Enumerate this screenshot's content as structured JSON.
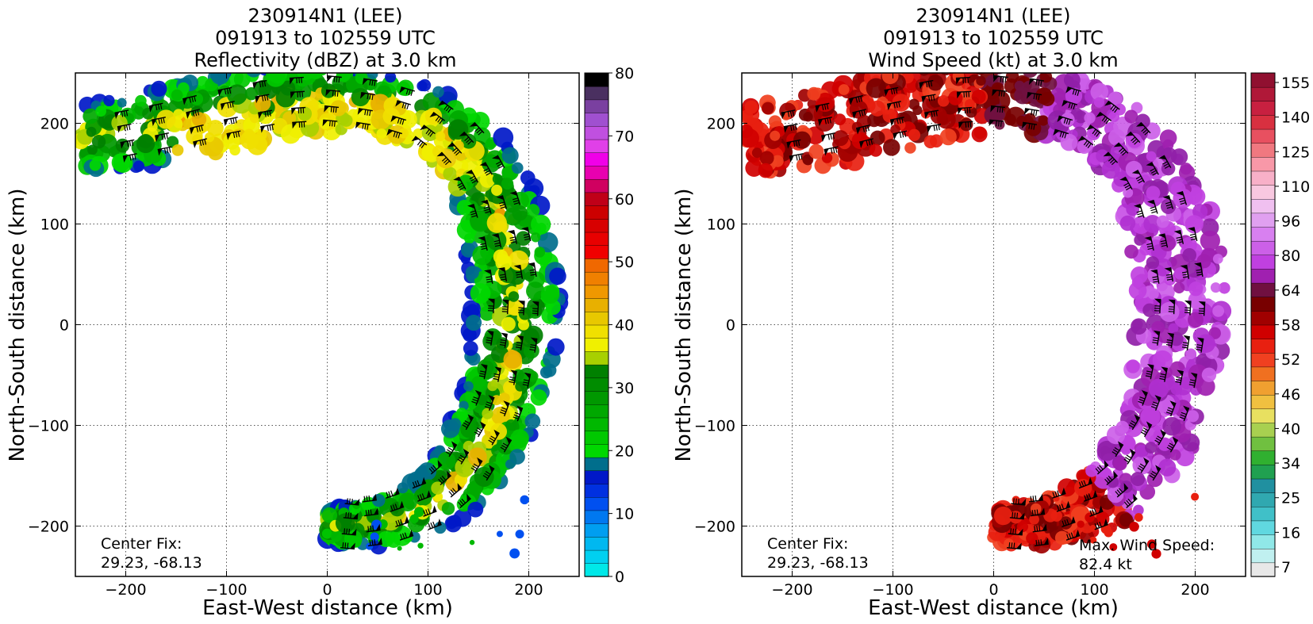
{
  "chart_data": [
    {
      "type": "heatmap",
      "title_lines": [
        "230914N1 (LEE)",
        "091913 to 102559 UTC",
        "Reflectivity (dBZ) at 3.0 km"
      ],
      "xlabel": "East-West distance (km)",
      "ylabel": "North-South distance (km)",
      "xlim": [
        -250,
        250
      ],
      "ylim": [
        -250,
        250
      ],
      "xticks": [
        -200,
        -100,
        0,
        100,
        200
      ],
      "yticks": [
        -200,
        -100,
        0,
        100,
        200
      ],
      "grid": true,
      "annotations": [
        {
          "id": "center-fix",
          "lines": [
            "Center Fix:",
            "29.23, -68.13"
          ],
          "location": "bottom-left"
        }
      ],
      "colorbar": {
        "label_values": [
          0,
          10,
          20,
          30,
          40,
          50,
          60,
          70,
          80
        ],
        "range": [
          0,
          80
        ],
        "colors": [
          "#00e8e8",
          "#00d0f0",
          "#00b8f0",
          "#009ef0",
          "#0078f0",
          "#0050f0",
          "#0030e0",
          "#0018c8",
          "#006e8c",
          "#00d800",
          "#00c800",
          "#00b800",
          "#00a800",
          "#009800",
          "#008c00",
          "#008000",
          "#a8d000",
          "#f0f000",
          "#f0e000",
          "#e8c800",
          "#e8b000",
          "#f09800",
          "#f08000",
          "#f06800",
          "#f00000",
          "#e80000",
          "#d80000",
          "#cc0000",
          "#c00018",
          "#d00060",
          "#e800b0",
          "#f000e8",
          "#e040e8",
          "#c050e0",
          "#a050d0",
          "#7a40a0",
          "#4a3060",
          "#000000"
        ]
      },
      "band_shape": "Curved rainband arc from the northwest (about -250, 200) eastward across the north to about (120, 220), bending south along the east side (x about 130–220) to the south near (0, -200)",
      "barbs": "wind barbs plotted along the band",
      "value_range_in_band": [
        15,
        45
      ]
    },
    {
      "type": "heatmap",
      "title_lines": [
        "230914N1 (LEE)",
        "091913 to 102559 UTC",
        "Wind Speed (kt) at 3.0 km"
      ],
      "xlabel": "East-West distance (km)",
      "ylabel": "North-South distance (km)",
      "xlim": [
        -250,
        250
      ],
      "ylim": [
        -250,
        250
      ],
      "xticks": [
        -200,
        -100,
        0,
        100,
        200
      ],
      "yticks": [
        -200,
        -100,
        0,
        100,
        200
      ],
      "grid": true,
      "annotations": [
        {
          "id": "center-fix",
          "lines": [
            "Center Fix:",
            "29.23, -68.13"
          ],
          "location": "bottom-left"
        },
        {
          "id": "max-wind",
          "lines": [
            "Max. Wind Speed:",
            "82.4 kt"
          ],
          "location": "bottom-right"
        }
      ],
      "max_wind_speed_kt": 82.4,
      "colorbar": {
        "label_values": [
          7,
          16,
          25,
          34,
          40,
          46,
          52,
          58,
          64,
          80,
          96,
          110,
          125,
          140,
          155
        ],
        "colors": [
          "#e8e8e8",
          "#c0f0f0",
          "#90e8e8",
          "#60d8e0",
          "#40c0c8",
          "#30a8b0",
          "#2090a0",
          "#20a050",
          "#30b030",
          "#70c040",
          "#a8d050",
          "#e8e060",
          "#f0c040",
          "#f0a030",
          "#f07020",
          "#f04020",
          "#e82010",
          "#d00000",
          "#a00000",
          "#780000",
          "#701040",
          "#a020b0",
          "#c040e0",
          "#cc60e8",
          "#d880f0",
          "#e0a0f0",
          "#f0c0f0",
          "#f8c8e0",
          "#f8b0c8",
          "#f898a8",
          "#f07880",
          "#e85060",
          "#d83040",
          "#c82040",
          "#b01838",
          "#901030"
        ]
      },
      "band_shape": "Same rainband arc; red/dark-red (50–64 kt) over the northwest and southern ends, purple (64–82 kt) along the northeast and east side",
      "barbs": "wind barbs plotted along the band",
      "value_range_in_band": [
        46,
        82.4
      ]
    }
  ]
}
